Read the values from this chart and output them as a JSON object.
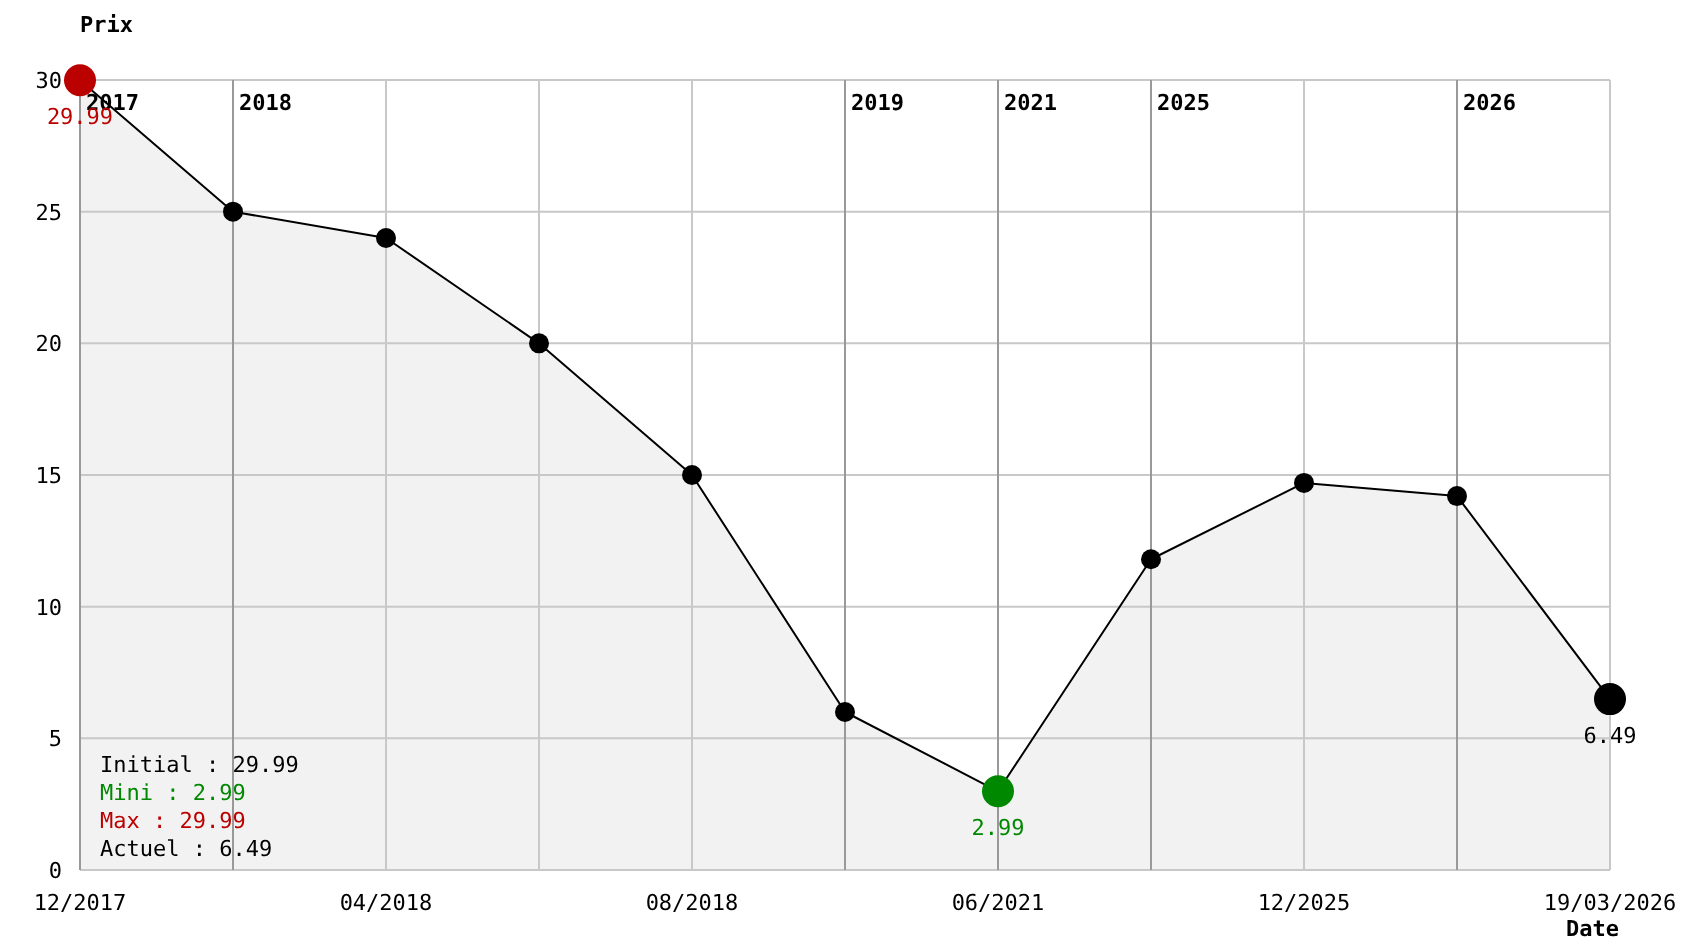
{
  "chart_data": {
    "type": "area",
    "xlabel": "Date",
    "ylabel": "Prix",
    "categories": [
      "12/2017",
      null,
      "04/2018",
      null,
      "08/2018",
      null,
      "06/2021",
      null,
      "12/2025",
      null,
      "19/03/2026"
    ],
    "series": [
      {
        "color": "#000000",
        "values": [
          29.99,
          25,
          24,
          20,
          15,
          6,
          2.99,
          11.8,
          14.7,
          14.2,
          6.49
        ],
        "colors": [
          "#bb0000",
          "#000000",
          "#000000",
          "#000000",
          "#000000",
          "#000000",
          "#008800",
          "#000000",
          "#000000",
          "#000000",
          "#000000"
        ],
        "value_labels": [
          "29.99",
          null,
          null,
          null,
          null,
          null,
          "2.99",
          null,
          null,
          null,
          "6.49"
        ]
      }
    ],
    "ylim": [
      0,
      30
    ],
    "yticks": [
      0,
      5,
      10,
      15,
      20,
      25,
      30
    ],
    "grid": true,
    "marker": "circle",
    "annotations": [
      "Initial : 29.99",
      "Mini : 2.99",
      "Max : 29.99",
      "Actuel : 6.49",
      "2017",
      "2018",
      "2019",
      "2021",
      "2025",
      "2026"
    ]
  }
}
